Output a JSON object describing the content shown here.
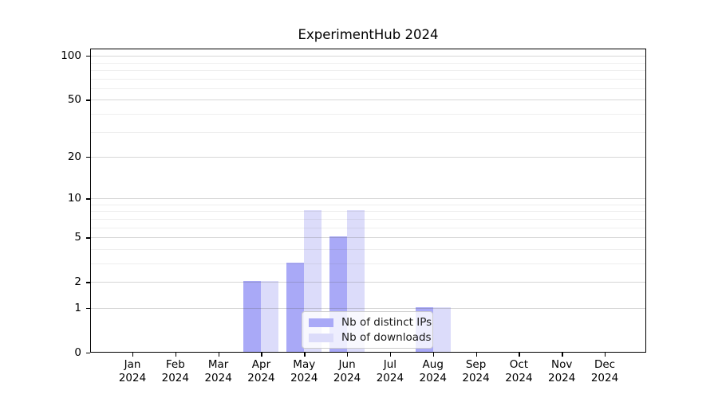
{
  "chart_data": {
    "type": "bar",
    "title": "ExperimentHub 2024",
    "categories": [
      "Jan",
      "Feb",
      "Mar",
      "Apr",
      "May",
      "Jun",
      "Jul",
      "Aug",
      "Sep",
      "Oct",
      "Nov",
      "Dec"
    ],
    "category_year": "2024",
    "series": [
      {
        "name": "Nb of distinct IPs",
        "color": "#a9a9f7",
        "values": [
          0,
          0,
          0,
          2,
          3,
          5,
          0,
          1,
          0,
          0,
          0,
          0
        ]
      },
      {
        "name": "Nb of downloads",
        "color": "#dcdcfa",
        "values": [
          0,
          0,
          0,
          2,
          8,
          8,
          0,
          1,
          0,
          0,
          0,
          0
        ]
      }
    ],
    "xlabel": "",
    "ylabel": "",
    "y_scale": "log1p",
    "ylim": [
      0,
      120
    ],
    "y_ticks": [
      0,
      1,
      2,
      5,
      10,
      20,
      50,
      100
    ],
    "y_tick_labels": [
      "0",
      "1",
      "2",
      "5",
      "10",
      "20",
      "50",
      "100"
    ],
    "grid_minor_values": [
      3,
      4,
      6,
      7,
      8,
      9,
      30,
      40,
      60,
      70,
      80,
      90
    ],
    "grid": "horizontal",
    "legend_position": "lower center",
    "colors": {
      "axis": "#000000",
      "grid_major": "#d6d6d6",
      "grid_minor": "#efefef",
      "legend_border": "#cccccc",
      "background": "#ffffff"
    }
  }
}
